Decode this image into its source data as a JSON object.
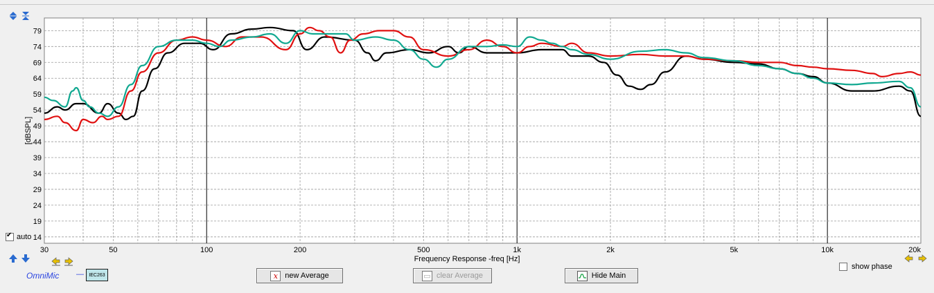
{
  "ylabel": "[dBSPL]",
  "xlabel": "Frequency Response -freq [Hz]",
  "y_ticks": [
    "79",
    "74",
    "69",
    "64",
    "59",
    "54",
    "49",
    "44",
    "39",
    "34",
    "29",
    "24",
    "19",
    "14"
  ],
  "x_ticks": [
    "30",
    "50",
    "100",
    "200",
    "500",
    "1k",
    "2k",
    "5k",
    "10k",
    "20k"
  ],
  "auto_label": "auto",
  "show_phase_label": "show phase",
  "brand_label": "OmniMic",
  "iec_label": "IEC263",
  "buttons": {
    "new_average": "new Average",
    "clear_average": "clear Average",
    "hide_main": "Hide Main"
  },
  "colors": {
    "black": "#000000",
    "red": "#e01010",
    "green": "#10a890",
    "background": "#ffffff",
    "grid": "#909090"
  },
  "chart_data": {
    "type": "line",
    "x_scale": "log",
    "xlim": [
      30,
      20000
    ],
    "ylim": [
      12,
      83
    ],
    "series": [
      {
        "color": "#000000",
        "points": [
          [
            30,
            53
          ],
          [
            33,
            55
          ],
          [
            35,
            54
          ],
          [
            38,
            56
          ],
          [
            40,
            56
          ],
          [
            45,
            53
          ],
          [
            48,
            56
          ],
          [
            52,
            53
          ],
          [
            55,
            51
          ],
          [
            58,
            52
          ],
          [
            62,
            60
          ],
          [
            68,
            67
          ],
          [
            75,
            72
          ],
          [
            85,
            75
          ],
          [
            95,
            75
          ],
          [
            105,
            73
          ],
          [
            120,
            78
          ],
          [
            140,
            79.5
          ],
          [
            160,
            80
          ],
          [
            190,
            79
          ],
          [
            210,
            73
          ],
          [
            240,
            77
          ],
          [
            300,
            76
          ],
          [
            330,
            72
          ],
          [
            350,
            69.5
          ],
          [
            380,
            72
          ],
          [
            450,
            73
          ],
          [
            520,
            72
          ],
          [
            600,
            74
          ],
          [
            650,
            72
          ],
          [
            700,
            74
          ],
          [
            800,
            72
          ],
          [
            900,
            72
          ],
          [
            1000,
            72
          ],
          [
            1200,
            73
          ],
          [
            1400,
            73
          ],
          [
            1500,
            71
          ],
          [
            1700,
            71
          ],
          [
            1900,
            69
          ],
          [
            2100,
            65
          ],
          [
            2300,
            61.5
          ],
          [
            2500,
            60.5
          ],
          [
            2700,
            62
          ],
          [
            3000,
            66
          ],
          [
            3500,
            71
          ],
          [
            4000,
            70
          ],
          [
            5000,
            69
          ],
          [
            6000,
            68.5
          ],
          [
            7000,
            67
          ],
          [
            8000,
            65.5
          ],
          [
            9000,
            64.5
          ],
          [
            10000,
            62.5
          ],
          [
            12000,
            60
          ],
          [
            14000,
            60
          ],
          [
            17000,
            61.5
          ],
          [
            18500,
            60
          ],
          [
            20000,
            52
          ]
        ]
      },
      {
        "color": "#e01010",
        "points": [
          [
            30,
            51
          ],
          [
            33,
            52
          ],
          [
            35,
            50
          ],
          [
            38,
            47.5
          ],
          [
            40,
            51
          ],
          [
            43,
            50
          ],
          [
            46,
            52
          ],
          [
            48,
            51
          ],
          [
            52,
            52
          ],
          [
            57,
            60
          ],
          [
            62,
            66
          ],
          [
            70,
            72
          ],
          [
            80,
            76
          ],
          [
            90,
            77
          ],
          [
            100,
            76
          ],
          [
            115,
            74
          ],
          [
            130,
            77
          ],
          [
            150,
            77
          ],
          [
            180,
            73
          ],
          [
            200,
            78
          ],
          [
            215,
            80
          ],
          [
            230,
            79
          ],
          [
            250,
            77
          ],
          [
            270,
            72
          ],
          [
            290,
            76
          ],
          [
            320,
            78
          ],
          [
            360,
            79
          ],
          [
            400,
            79
          ],
          [
            450,
            77
          ],
          [
            500,
            73
          ],
          [
            600,
            71
          ],
          [
            700,
            73
          ],
          [
            800,
            76
          ],
          [
            900,
            74
          ],
          [
            1000,
            72
          ],
          [
            1100,
            74
          ],
          [
            1200,
            75
          ],
          [
            1400,
            74
          ],
          [
            1500,
            75
          ],
          [
            1700,
            72
          ],
          [
            2000,
            71
          ],
          [
            2500,
            71.5
          ],
          [
            3000,
            71
          ],
          [
            3500,
            71
          ],
          [
            4000,
            70
          ],
          [
            5000,
            69.5
          ],
          [
            6000,
            69
          ],
          [
            7000,
            69
          ],
          [
            8000,
            68
          ],
          [
            9000,
            67.5
          ],
          [
            10000,
            67
          ],
          [
            12000,
            66.5
          ],
          [
            14000,
            65.5
          ],
          [
            15000,
            64.5
          ],
          [
            17000,
            65.5
          ],
          [
            18500,
            66
          ],
          [
            20000,
            65
          ]
        ]
      },
      {
        "color": "#10a890",
        "points": [
          [
            30,
            58
          ],
          [
            32,
            57
          ],
          [
            35,
            55
          ],
          [
            37,
            60
          ],
          [
            38,
            61
          ],
          [
            40,
            57
          ],
          [
            42,
            55
          ],
          [
            45,
            53
          ],
          [
            48,
            52
          ],
          [
            52,
            55
          ],
          [
            57,
            62
          ],
          [
            62,
            68
          ],
          [
            70,
            74
          ],
          [
            80,
            76
          ],
          [
            90,
            76
          ],
          [
            100,
            75
          ],
          [
            110,
            74
          ],
          [
            120,
            76
          ],
          [
            140,
            77
          ],
          [
            160,
            78
          ],
          [
            180,
            75
          ],
          [
            200,
            79
          ],
          [
            220,
            78
          ],
          [
            250,
            78
          ],
          [
            280,
            78
          ],
          [
            300,
            76
          ],
          [
            350,
            77
          ],
          [
            400,
            76
          ],
          [
            450,
            73
          ],
          [
            500,
            70
          ],
          [
            550,
            67.5
          ],
          [
            600,
            70
          ],
          [
            700,
            74
          ],
          [
            800,
            74
          ],
          [
            900,
            74.5
          ],
          [
            1000,
            74
          ],
          [
            1100,
            77
          ],
          [
            1200,
            76
          ],
          [
            1300,
            75
          ],
          [
            1400,
            74
          ],
          [
            1500,
            73
          ],
          [
            1700,
            71.5
          ],
          [
            2000,
            70
          ],
          [
            2500,
            72.5
          ],
          [
            3000,
            73
          ],
          [
            3500,
            72
          ],
          [
            4000,
            70.5
          ],
          [
            5000,
            69.5
          ],
          [
            6000,
            68
          ],
          [
            7000,
            67
          ],
          [
            8000,
            65.5
          ],
          [
            9000,
            64
          ],
          [
            10000,
            62.5
          ],
          [
            12000,
            62
          ],
          [
            14000,
            62.5
          ],
          [
            17000,
            63
          ],
          [
            18500,
            61
          ],
          [
            20000,
            55
          ]
        ]
      }
    ]
  }
}
